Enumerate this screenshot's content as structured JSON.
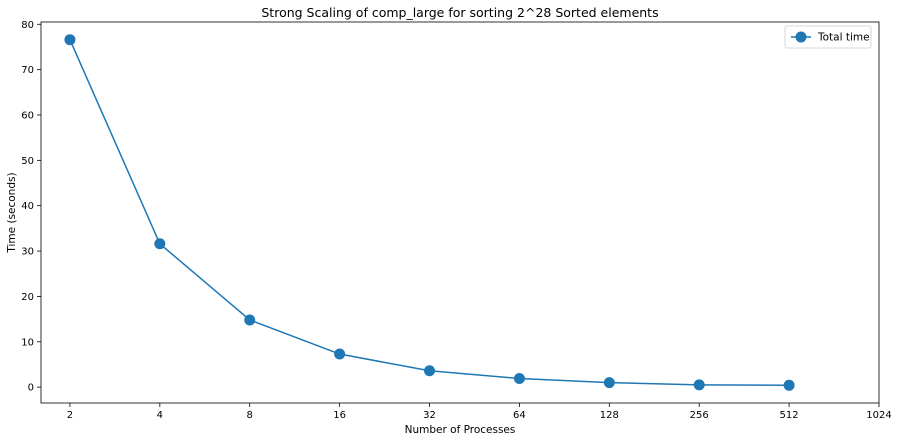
{
  "chart_data": {
    "type": "line",
    "title": "Strong Scaling of comp_large for sorting 2^28 Sorted elements",
    "xlabel": "Number of Processes",
    "ylabel": "Time (seconds)",
    "x_scale": "log2",
    "xlim": [
      1.6,
      1024
    ],
    "ylim": [
      -3.5,
      80.5
    ],
    "xticks": [
      2,
      4,
      8,
      16,
      32,
      64,
      128,
      256,
      512,
      1024
    ],
    "xtick_labels": [
      "2",
      "4",
      "8",
      "16",
      "32",
      "64",
      "128",
      "256",
      "512",
      "1024"
    ],
    "yticks": [
      0,
      10,
      20,
      30,
      40,
      50,
      60,
      70,
      80
    ],
    "ytick_labels": [
      "0",
      "10",
      "20",
      "30",
      "40",
      "50",
      "60",
      "70",
      "80"
    ],
    "grid": false,
    "legend_position": "top-right",
    "series": [
      {
        "name": "Total time",
        "color": "#1f77b4",
        "marker": "circle",
        "x": [
          2,
          4,
          8,
          16,
          32,
          64,
          128,
          256,
          512
        ],
        "y": [
          76.6,
          31.6,
          14.8,
          7.3,
          3.6,
          1.9,
          1.0,
          0.5,
          0.4
        ]
      }
    ]
  }
}
